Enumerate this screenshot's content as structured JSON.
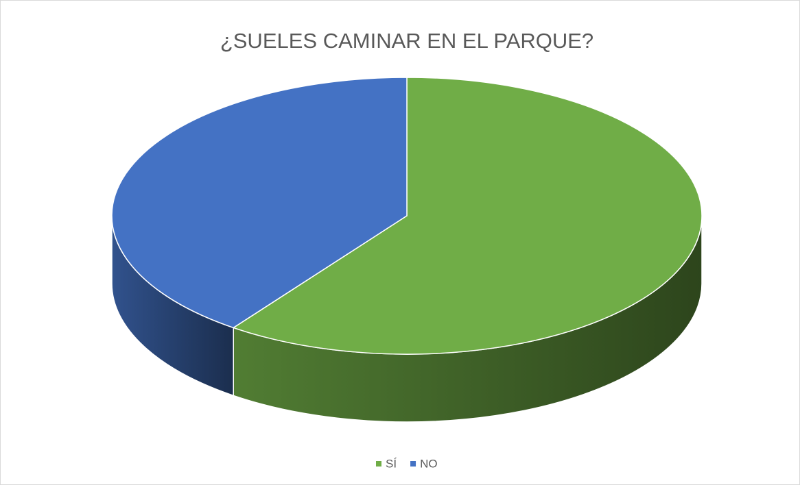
{
  "chart_data": {
    "type": "pie",
    "title": "¿SUELES CAMINAR EN EL PARQUE?",
    "categories": [
      "SÍ",
      "NO"
    ],
    "values": [
      60,
      40
    ],
    "colors": [
      "#70ad47",
      "#4472c4"
    ]
  }
}
